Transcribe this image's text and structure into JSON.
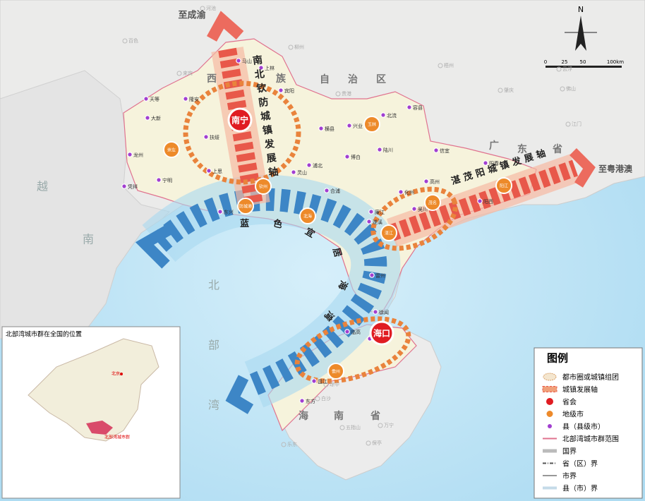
{
  "map": {
    "corridor_labels": {
      "north": "至成渝",
      "east": "至粤港澳"
    },
    "axes": {
      "north_south": "南北钦防城镇发展轴",
      "east": "湛茂阳城镇发展轴",
      "bay": "蓝色宜居海湾"
    },
    "capitals": [
      "南宁",
      "海口"
    ],
    "prefecture_cities": [
      "崇左",
      "钦州",
      "防城港",
      "北海",
      "玉林",
      "茂名",
      "湛江",
      "阳江",
      "儋州"
    ],
    "counties": [
      "马山",
      "上林",
      "宾阳",
      "隆安",
      "天等",
      "大新",
      "扶绥",
      "龙州",
      "凭祥",
      "宁明",
      "上思",
      "东兴",
      "横县",
      "灵山",
      "浦北",
      "合浦",
      "兴业",
      "北流",
      "容县",
      "陆川",
      "博白",
      "信宜",
      "高州",
      "阳春",
      "阳西",
      "化州",
      "廉江",
      "吴川",
      "遂溪",
      "雷州",
      "徐闻",
      "临高",
      "澄迈",
      "昌江",
      "东方"
    ],
    "background_places": [
      "河池",
      "百色",
      "来宾",
      "柳州",
      "贵港",
      "梧州",
      "云浮",
      "肇庆",
      "佛山",
      "江门",
      "白沙",
      "琼中",
      "五指山",
      "乐东",
      "万宁",
      "保亭"
    ],
    "region_labels": {
      "guangxi": [
        "西",
        "族",
        "自",
        "治",
        "区"
      ],
      "guangdong": [
        "广",
        "东",
        "省"
      ],
      "vietnam": [
        "越",
        "南"
      ],
      "gulf": [
        "北",
        "部",
        "湾"
      ],
      "hainan": [
        "海",
        "南",
        "省"
      ]
    },
    "scale": {
      "labels": [
        "0",
        "25",
        "50",
        "100km"
      ],
      "north": "N"
    },
    "legend": {
      "title": "图例",
      "items": [
        "都市圈或城镇组团",
        "城镇发展轴",
        "省会",
        "地级市",
        "县（县级市）",
        "北部湾城市群范围",
        "国界",
        "省（区）界",
        "市界",
        "县（市）界"
      ]
    },
    "inset": {
      "title": "北部湾城市群在全国的位置",
      "capital": "北京",
      "region": "北部湾城市群"
    }
  }
}
